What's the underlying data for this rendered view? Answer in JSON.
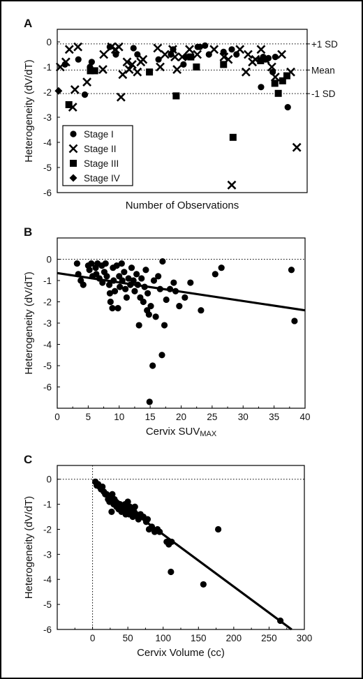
{
  "chart_data": [
    {
      "panel_label": "A",
      "type": "scatter",
      "xlabel": "Number of Observations",
      "ylabel": "Heterogeneity (dV/dT)",
      "ylim": [
        -6,
        0.5
      ],
      "yticks": [
        0,
        -1,
        -2,
        -3,
        -4,
        -5,
        -6
      ],
      "xlim": [
        -1,
        57
      ],
      "x_ticks_shown": false,
      "reference_lines": [
        {
          "label": "+1 SD",
          "y": -0.08
        },
        {
          "label": "Mean",
          "y": -1.12
        },
        {
          "label": "-1 SD",
          "y": -2.06
        }
      ],
      "legend": {
        "placement": "lower-left",
        "entries": [
          "Stage I",
          "Stage II",
          "Stage III",
          "Stage IV"
        ]
      },
      "series": [
        {
          "name": "Stage I",
          "marker": "circle",
          "points": [
            [
              0.8,
              -0.9
            ],
            [
              3.9,
              -0.7
            ],
            [
              5.4,
              -2.1
            ],
            [
              6.6,
              -1.0
            ],
            [
              7.0,
              -0.8
            ],
            [
              11.2,
              -0.2
            ],
            [
              12.6,
              -0.5
            ],
            [
              16.7,
              -0.25
            ],
            [
              17.6,
              -0.5
            ],
            [
              22.5,
              -0.7
            ],
            [
              25.4,
              -0.5
            ],
            [
              25.9,
              -0.3
            ],
            [
              28.3,
              -0.9
            ],
            [
              28.8,
              -0.6
            ],
            [
              31.6,
              -0.2
            ],
            [
              32.1,
              -0.2
            ],
            [
              33.3,
              -0.15
            ],
            [
              34.2,
              -0.5
            ],
            [
              37.6,
              -0.4
            ],
            [
              39.5,
              -0.3
            ],
            [
              40.6,
              -0.5
            ],
            [
              46.3,
              -1.8
            ],
            [
              46.8,
              -0.6
            ],
            [
              47.3,
              -0.7
            ],
            [
              48.0,
              -0.65
            ],
            [
              49.0,
              -1.2
            ],
            [
              49.6,
              -0.6
            ],
            [
              52.5,
              -2.6
            ]
          ]
        },
        {
          "name": "Stage II",
          "marker": "x",
          "points": [
            [
              -0.3,
              -1.0
            ],
            [
              1.0,
              -0.8
            ],
            [
              1.8,
              -0.3
            ],
            [
              2.6,
              -2.6
            ],
            [
              3.1,
              -1.9
            ],
            [
              3.8,
              -0.2
            ],
            [
              5.9,
              -1.6
            ],
            [
              9.6,
              -1.1
            ],
            [
              9.8,
              -0.5
            ],
            [
              11.6,
              -0.2
            ],
            [
              12.5,
              -0.3
            ],
            [
              13.3,
              -0.2
            ],
            [
              13.8,
              -2.2
            ],
            [
              14.2,
              -1.3
            ],
            [
              15.2,
              -0.8
            ],
            [
              15.7,
              -1.1
            ],
            [
              16.4,
              -0.9
            ],
            [
              17.6,
              -1.2
            ],
            [
              18.4,
              -0.8
            ],
            [
              18.9,
              -0.7
            ],
            [
              22.3,
              -0.25
            ],
            [
              22.9,
              -1.0
            ],
            [
              24.0,
              -0.5
            ],
            [
              25.8,
              -0.3
            ],
            [
              26.3,
              -0.6
            ],
            [
              26.8,
              -1.1
            ],
            [
              28.0,
              -0.6
            ],
            [
              29.7,
              -0.3
            ],
            [
              31.5,
              -0.5
            ],
            [
              35.4,
              -0.3
            ],
            [
              37.7,
              -0.6
            ],
            [
              38.7,
              -0.7
            ],
            [
              39.5,
              -5.7
            ],
            [
              41.4,
              -0.3
            ],
            [
              42.8,
              -1.2
            ],
            [
              43.3,
              -0.5
            ],
            [
              44.3,
              -0.8
            ],
            [
              45.0,
              -0.7
            ],
            [
              46.3,
              -0.3
            ],
            [
              47.3,
              -0.7
            ],
            [
              48.8,
              -1.0
            ],
            [
              49.6,
              -1.4
            ],
            [
              51.1,
              -0.5
            ],
            [
              53.2,
              -1.2
            ],
            [
              54.6,
              -4.2
            ]
          ]
        },
        {
          "name": "Stage III",
          "marker": "square",
          "points": [
            [
              1.7,
              -2.5
            ],
            [
              6.7,
              -1.15
            ],
            [
              7.7,
              -1.15
            ],
            [
              20.4,
              -1.2
            ],
            [
              26.6,
              -2.15
            ],
            [
              30.0,
              -0.6
            ],
            [
              31.3,
              -1.0
            ],
            [
              37.6,
              -0.9
            ],
            [
              39.8,
              -3.8
            ],
            [
              46.2,
              -0.75
            ],
            [
              49.5,
              -1.65
            ],
            [
              50.3,
              -2.05
            ],
            [
              51.3,
              -1.55
            ],
            [
              52.3,
              -1.35
            ]
          ]
        },
        {
          "name": "Stage IV",
          "marker": "diamond",
          "points": [
            [
              -0.7,
              -1.95
            ]
          ]
        }
      ]
    },
    {
      "panel_label": "B",
      "type": "scatter",
      "xlabel_main": "Cervix SUV",
      "xlabel_sub": "MAX",
      "ylabel": "Heterogeneity (dV/dT)",
      "xlim": [
        0,
        40
      ],
      "ylim": [
        -7,
        1
      ],
      "xticks": [
        0,
        5,
        10,
        15,
        20,
        25,
        30,
        35,
        40
      ],
      "yticks": [
        0,
        -1,
        -2,
        -3,
        -4,
        -5,
        -6
      ],
      "reference_lines": [
        {
          "y": 0
        }
      ],
      "fit_line": [
        [
          0,
          -0.65
        ],
        [
          40,
          -2.4
        ]
      ],
      "points": [
        [
          3.2,
          -0.2
        ],
        [
          3.4,
          -0.7
        ],
        [
          3.8,
          -1.0
        ],
        [
          4.2,
          -1.2
        ],
        [
          5.0,
          -0.3
        ],
        [
          5.2,
          -0.5
        ],
        [
          5.5,
          -0.2
        ],
        [
          5.7,
          -0.8
        ],
        [
          6.2,
          -0.4
        ],
        [
          6.3,
          -0.7
        ],
        [
          6.5,
          -0.2
        ],
        [
          6.8,
          -0.9
        ],
        [
          7.2,
          -0.3
        ],
        [
          7.3,
          -1.1
        ],
        [
          7.6,
          -0.6
        ],
        [
          7.8,
          -0.2
        ],
        [
          8.0,
          -0.8
        ],
        [
          8.4,
          -1.2
        ],
        [
          8.5,
          -1.6
        ],
        [
          8.6,
          -2.0
        ],
        [
          8.9,
          -2.3
        ],
        [
          9.0,
          -0.4
        ],
        [
          9.1,
          -1.0
        ],
        [
          9.3,
          -1.5
        ],
        [
          9.6,
          -0.3
        ],
        [
          9.8,
          -2.3
        ],
        [
          10.0,
          -0.8
        ],
        [
          10.1,
          -1.3
        ],
        [
          10.4,
          -0.2
        ],
        [
          10.5,
          -1.0
        ],
        [
          10.8,
          -0.6
        ],
        [
          11.0,
          -1.4
        ],
        [
          11.2,
          -1.8
        ],
        [
          11.5,
          -0.9
        ],
        [
          11.8,
          -1.2
        ],
        [
          12.0,
          -0.4
        ],
        [
          12.3,
          -1.0
        ],
        [
          12.5,
          -1.5
        ],
        [
          12.8,
          -0.7
        ],
        [
          13.0,
          -1.2
        ],
        [
          13.2,
          -3.1
        ],
        [
          13.4,
          -1.8
        ],
        [
          13.6,
          -0.9
        ],
        [
          13.9,
          -2.0
        ],
        [
          14.1,
          -1.3
        ],
        [
          14.3,
          -0.5
        ],
        [
          14.5,
          -2.4
        ],
        [
          14.6,
          -1.6
        ],
        [
          14.8,
          -2.6
        ],
        [
          14.9,
          -6.7
        ],
        [
          15.1,
          -2.2
        ],
        [
          15.4,
          -5.0
        ],
        [
          15.6,
          -1.0
        ],
        [
          15.9,
          -2.7
        ],
        [
          16.3,
          -0.8
        ],
        [
          16.6,
          -1.4
        ],
        [
          16.9,
          -4.5
        ],
        [
          17.0,
          -0.1
        ],
        [
          17.3,
          -3.1
        ],
        [
          17.6,
          -1.9
        ],
        [
          18.2,
          -1.4
        ],
        [
          18.8,
          -1.1
        ],
        [
          19.1,
          -1.5
        ],
        [
          19.7,
          -2.2
        ],
        [
          20.6,
          -1.8
        ],
        [
          21.5,
          -1.1
        ],
        [
          23.2,
          -2.4
        ],
        [
          25.5,
          -0.7
        ],
        [
          26.5,
          -0.4
        ],
        [
          37.8,
          -0.5
        ],
        [
          38.3,
          -2.9
        ]
      ]
    },
    {
      "panel_label": "C",
      "type": "scatter",
      "xlabel": "Cervix Volume (cc)",
      "ylabel": "Heterogeneity (dV/dT)",
      "xlim": [
        -50,
        300
      ],
      "ylim": [
        -6,
        0.55
      ],
      "xticks": [
        0,
        50,
        100,
        150,
        200,
        250,
        300
      ],
      "yticks": [
        0,
        -1,
        -2,
        -3,
        -4,
        -5,
        -6
      ],
      "reference_lines": [
        {
          "y": 0
        },
        {
          "x": 0
        }
      ],
      "fit_line": [
        [
          0,
          -0.12
        ],
        [
          282,
          -6.0
        ]
      ],
      "points": [
        [
          4,
          -0.1
        ],
        [
          6,
          -0.25
        ],
        [
          8,
          -0.2
        ],
        [
          10,
          -0.3
        ],
        [
          12,
          -0.4
        ],
        [
          14,
          -0.3
        ],
        [
          16,
          -0.5
        ],
        [
          18,
          -0.6
        ],
        [
          20,
          -0.6
        ],
        [
          22,
          -0.8
        ],
        [
          24,
          -0.9
        ],
        [
          26,
          -0.7
        ],
        [
          27,
          -1.3
        ],
        [
          28,
          -0.6
        ],
        [
          30,
          -1.0
        ],
        [
          31,
          -0.8
        ],
        [
          33,
          -0.9
        ],
        [
          34,
          -1.1
        ],
        [
          36,
          -1.1
        ],
        [
          37,
          -1.2
        ],
        [
          39,
          -1.0
        ],
        [
          41,
          -1.3
        ],
        [
          42,
          -1.1
        ],
        [
          44,
          -1.2
        ],
        [
          46,
          -1.0
        ],
        [
          47,
          -1.4
        ],
        [
          48,
          -1.2
        ],
        [
          50,
          -0.9
        ],
        [
          52,
          -1.4
        ],
        [
          53,
          -1.1
        ],
        [
          55,
          -1.2
        ],
        [
          57,
          -1.5
        ],
        [
          59,
          -1.3
        ],
        [
          60,
          -1.1
        ],
        [
          62,
          -1.4
        ],
        [
          65,
          -1.6
        ],
        [
          68,
          -1.4
        ],
        [
          72,
          -1.5
        ],
        [
          76,
          -1.7
        ],
        [
          78,
          -1.6
        ],
        [
          80,
          -2.0
        ],
        [
          84,
          -1.9
        ],
        [
          88,
          -2.1
        ],
        [
          92,
          -2.0
        ],
        [
          95,
          -2.1
        ],
        [
          105,
          -2.5
        ],
        [
          108,
          -2.6
        ],
        [
          111,
          -3.7
        ],
        [
          112,
          -2.5
        ],
        [
          157,
          -4.2
        ],
        [
          178,
          -2.0
        ],
        [
          266,
          -5.65
        ]
      ]
    }
  ]
}
